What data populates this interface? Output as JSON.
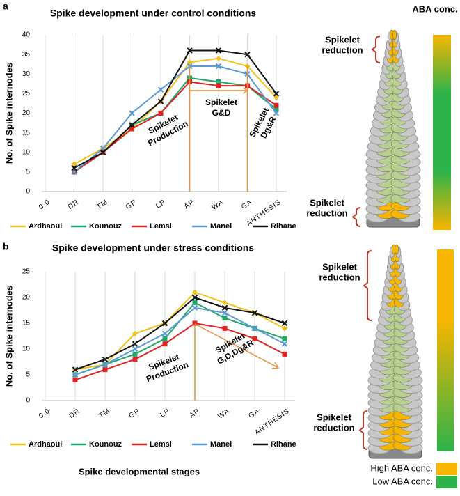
{
  "chart_data": [
    {
      "type": "line",
      "panel": "a",
      "title": "Spike development under control conditions",
      "y_label": "No. of Spike internodes",
      "categories": [
        "0.0",
        "DR",
        "TM",
        "GP",
        "LP",
        "AP",
        "WA",
        "GA",
        "ANTHESIS"
      ],
      "series": [
        {
          "name": "Ardhaoui",
          "color": "#f2c21b",
          "values": [
            null,
            7,
            11,
            16,
            23,
            33,
            34,
            32,
            24
          ]
        },
        {
          "name": "Kounouz",
          "color": "#1fa86a",
          "values": [
            null,
            5,
            10,
            17,
            20,
            29,
            28,
            27,
            21
          ]
        },
        {
          "name": "Lemsi",
          "color": "#e02424",
          "values": [
            null,
            5,
            10,
            16,
            20,
            28,
            27,
            27,
            22
          ]
        },
        {
          "name": "Manel",
          "color": "#5b9bd5",
          "values": [
            null,
            5,
            11,
            20,
            26,
            32,
            32,
            30,
            20
          ]
        },
        {
          "name": "Rihane",
          "color": "#111111",
          "values": [
            null,
            6,
            10,
            17,
            23,
            36,
            36,
            35,
            25
          ]
        }
      ],
      "ylim": [
        0,
        40
      ],
      "yticks": [
        0,
        5,
        10,
        15,
        20,
        25,
        30,
        35,
        40
      ],
      "grid": true,
      "annotations": [
        [
          "Spikelet",
          "Production"
        ],
        [
          "Spikelet",
          "G&D"
        ],
        [
          "Spikelet",
          "Dg&R"
        ]
      ]
    },
    {
      "type": "line",
      "panel": "b",
      "title": "Spike development under stress conditions",
      "y_label": "No. of Spike internodes",
      "x_label": "Spike developmental stages",
      "categories": [
        "0.0",
        "DR",
        "TM",
        "GP",
        "LP",
        "AP",
        "WA",
        "GA",
        "ANTHESIS"
      ],
      "series": [
        {
          "name": "Ardhaoui",
          "color": "#f2c21b",
          "values": [
            null,
            6,
            7,
            13,
            15,
            21,
            19,
            17,
            14
          ]
        },
        {
          "name": "Kounouz",
          "color": "#1fa86a",
          "values": [
            null,
            5,
            7,
            9,
            12,
            19,
            16,
            14,
            12
          ]
        },
        {
          "name": "Lemsi",
          "color": "#e02424",
          "values": [
            null,
            4,
            6,
            8,
            11,
            15,
            14,
            12,
            9
          ]
        },
        {
          "name": "Manel",
          "color": "#5b9bd5",
          "values": [
            null,
            5,
            7,
            10,
            13,
            18,
            17,
            14,
            11
          ]
        },
        {
          "name": "Rihane",
          "color": "#111111",
          "values": [
            null,
            6,
            8,
            11,
            15,
            20,
            18,
            17,
            15
          ]
        }
      ],
      "ylim": [
        0,
        25
      ],
      "yticks": [
        0,
        5,
        10,
        15,
        20,
        25
      ],
      "grid": true,
      "annotations": [
        [
          "Spikelet",
          "Production"
        ],
        [
          "Spikelet",
          "G,D,Dg&R"
        ]
      ]
    }
  ],
  "illustration": {
    "heading": "ABA conc.",
    "labels": [
      [
        "Spikelet",
        "reduction"
      ],
      [
        "Spikelet",
        "reduction"
      ],
      [
        "Spikelet",
        "reduction"
      ],
      [
        "Spikelet",
        "reduction"
      ]
    ],
    "key": [
      "High ABA conc.",
      "Low ABA conc."
    ]
  }
}
